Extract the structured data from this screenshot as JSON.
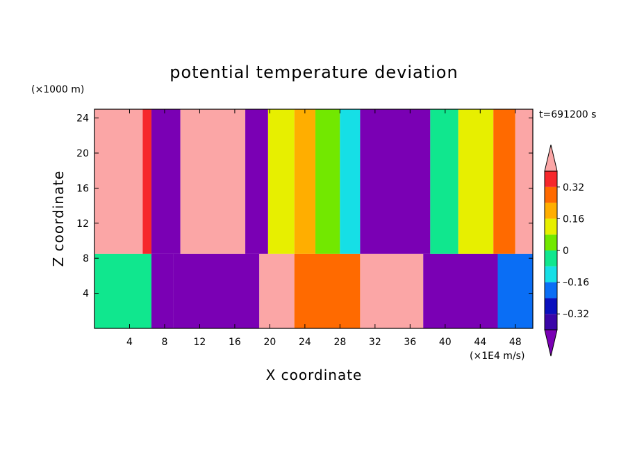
{
  "chart_data": {
    "type": "heatmap",
    "title": "potential temperature deviation",
    "xlabel": "X coordinate",
    "ylabel": "Z coordinate",
    "x_unit": "(×1E4 m/s)",
    "y_unit": "(×1000 m)",
    "time_label": "t=691200 s",
    "xlim": [
      0,
      50
    ],
    "ylim": [
      0,
      25
    ],
    "x_ticks": [
      "4",
      "8",
      "12",
      "16",
      "20",
      "24",
      "28",
      "32",
      "36",
      "40",
      "44",
      "48"
    ],
    "y_ticks": [
      "4",
      "8",
      "12",
      "16",
      "20",
      "24"
    ],
    "colorbar": {
      "levels": [
        -0.48,
        -0.4,
        -0.32,
        -0.24,
        -0.16,
        -0.08,
        0,
        0.08,
        0.16,
        0.24,
        0.32,
        0.4
      ],
      "tick_labels": [
        "0.32",
        "0.16",
        "0",
        "–0.16",
        "–0.32"
      ],
      "colors": [
        "#7a00b4",
        "#3a06a8",
        "#0a10bd",
        "#0a6ef5",
        "#16dfe6",
        "#10e78e",
        "#72e800",
        "#e7ef00",
        "#ffae00",
        "#ff6a00",
        "#f6282c",
        "#fba6a6"
      ]
    },
    "upper_layer": {
      "z_range": [
        8.5,
        25
      ],
      "columns": [
        {
          "x": [
            0,
            5.5
          ],
          "value": 0.4
        },
        {
          "x": [
            5.5,
            6.5
          ],
          "value": 0.35
        },
        {
          "x": [
            6.5,
            9.8
          ],
          "value": -0.45
        },
        {
          "x": [
            9.8,
            17.2
          ],
          "value": 0.44
        },
        {
          "x": [
            17.2,
            19.8
          ],
          "value": -0.45
        },
        {
          "x": [
            19.8,
            22.8
          ],
          "value": 0.1
        },
        {
          "x": [
            22.8,
            25.2
          ],
          "value": 0.22
        },
        {
          "x": [
            25.2,
            28.0
          ],
          "value": 0.04
        },
        {
          "x": [
            28.0,
            30.3
          ],
          "value": -0.1
        },
        {
          "x": [
            30.3,
            38.3
          ],
          "value": -0.46
        },
        {
          "x": [
            38.3,
            41.5
          ],
          "value": -0.05
        },
        {
          "x": [
            41.5,
            45.5
          ],
          "value": 0.15
        },
        {
          "x": [
            45.5,
            48.0
          ],
          "value": 0.28
        },
        {
          "x": [
            48.0,
            50
          ],
          "value": 0.4
        }
      ]
    },
    "lower_layer": {
      "z_range": [
        0,
        8.5
      ],
      "columns": [
        {
          "x": [
            0,
            6.5
          ],
          "value": -0.05
        },
        {
          "x": [
            6.5,
            9.0
          ],
          "value": -0.45
        },
        {
          "x": [
            9.0,
            18.8
          ],
          "value": -0.44
        },
        {
          "x": [
            18.8,
            22.8
          ],
          "value": 0.42
        },
        {
          "x": [
            22.8,
            30.3
          ],
          "value": 0.3
        },
        {
          "x": [
            30.3,
            37.5
          ],
          "value": 0.43
        },
        {
          "x": [
            37.5,
            46.0
          ],
          "value": -0.46
        },
        {
          "x": [
            46.0,
            50
          ],
          "value": -0.2
        }
      ]
    }
  }
}
